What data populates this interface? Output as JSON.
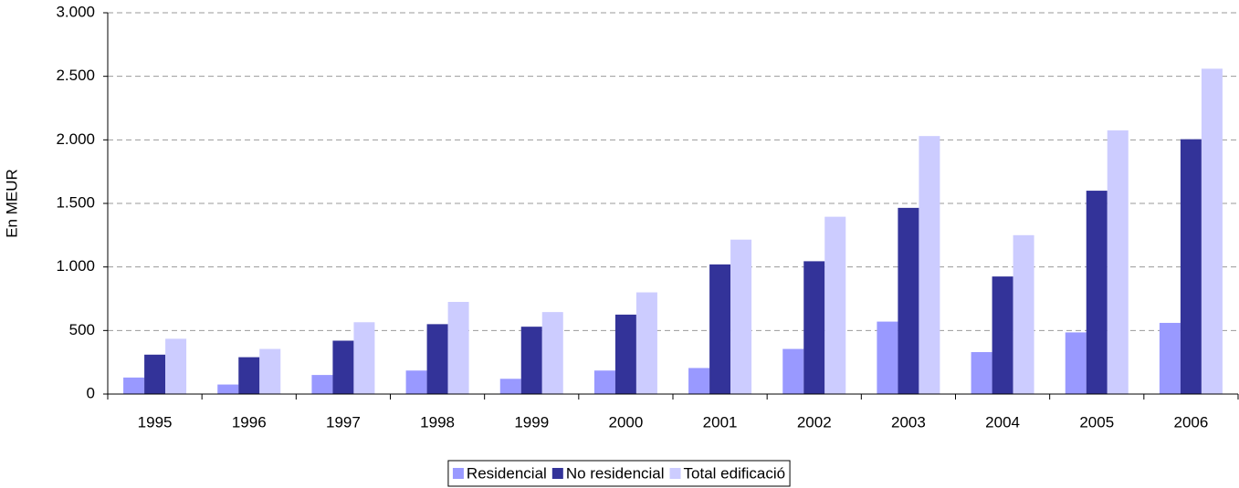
{
  "chart_data": {
    "type": "bar",
    "y_label": "En MEUR",
    "categories": [
      "1995",
      "1996",
      "1997",
      "1998",
      "1999",
      "2000",
      "2001",
      "2002",
      "2003",
      "2004",
      "2005",
      "2006"
    ],
    "series": [
      {
        "name": "Residencial",
        "color": "#9999ff",
        "values": [
          130,
          75,
          150,
          185,
          120,
          185,
          205,
          355,
          570,
          330,
          485,
          560
        ]
      },
      {
        "name": "No residencial",
        "color": "#333399",
        "values": [
          310,
          290,
          420,
          550,
          530,
          625,
          1020,
          1045,
          1465,
          925,
          1600,
          2005
        ]
      },
      {
        "name": "Total edificació",
        "color": "#ccccff",
        "values": [
          435,
          355,
          565,
          725,
          645,
          800,
          1215,
          1395,
          2030,
          1250,
          2075,
          2560
        ]
      }
    ],
    "ylim": [
      0,
      3000
    ],
    "yticks": [
      0,
      500,
      {
        "value": 1000,
        "label": "1.000"
      },
      {
        "value": 1500,
        "label": "1.500"
      },
      {
        "value": 2000,
        "label": "2.000"
      },
      {
        "value": 2500,
        "label": "2.500"
      },
      {
        "value": 3000,
        "label": "3.000"
      }
    ],
    "grid": true,
    "legend": "bottom"
  }
}
